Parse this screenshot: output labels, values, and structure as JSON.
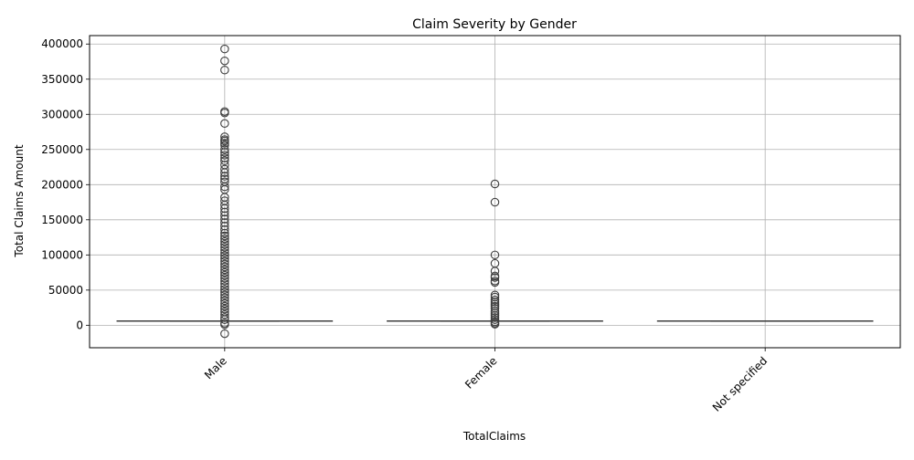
{
  "chart_data": {
    "type": "box",
    "title": "Claim Severity by Gender",
    "xlabel": "TotalClaims",
    "ylabel": "Total Claims Amount",
    "ylim": [
      -32000,
      412000
    ],
    "yticks": [
      0,
      50000,
      100000,
      150000,
      200000,
      250000,
      300000,
      350000,
      400000
    ],
    "grid": true,
    "categories": [
      "Male",
      "Female",
      "Not specified"
    ],
    "boxes": [
      {
        "category": "Male",
        "q1": 5900,
        "median": 5900,
        "q3": 5900,
        "whisker_low": 5900,
        "whisker_high": 5900,
        "outliers": [
          393000,
          376000,
          363000,
          304000,
          302000,
          287000,
          268000,
          264000,
          262000,
          259000,
          256000,
          250000,
          246000,
          242000,
          238000,
          234000,
          228000,
          222000,
          217000,
          212000,
          208000,
          204000,
          197000,
          193000,
          182000,
          177000,
          171000,
          166000,
          161000,
          156000,
          151000,
          146000,
          141000,
          136000,
          131000,
          127000,
          123000,
          119000,
          115000,
          111000,
          107000,
          103000,
          99000,
          95000,
          91000,
          87000,
          83000,
          79000,
          75000,
          71000,
          67000,
          63000,
          59000,
          55000,
          51000,
          47000,
          43000,
          39000,
          35000,
          31000,
          27000,
          23000,
          19000,
          15000,
          11000,
          8000,
          3000,
          1000,
          -12000
        ]
      },
      {
        "category": "Female",
        "q1": 5900,
        "median": 5900,
        "q3": 5900,
        "whisker_low": 5900,
        "whisker_high": 5900,
        "outliers": [
          201000,
          175000,
          100000,
          88000,
          77000,
          70000,
          68000,
          63000,
          61000,
          43000,
          40000,
          36000,
          33000,
          30000,
          27000,
          24000,
          20000,
          17000,
          14000,
          11000,
          8000,
          5000,
          3000,
          1500
        ]
      },
      {
        "category": "Not specified",
        "q1": 5900,
        "median": 5900,
        "q3": 5900,
        "whisker_low": 5900,
        "whisker_high": 5900,
        "outliers": []
      }
    ]
  }
}
